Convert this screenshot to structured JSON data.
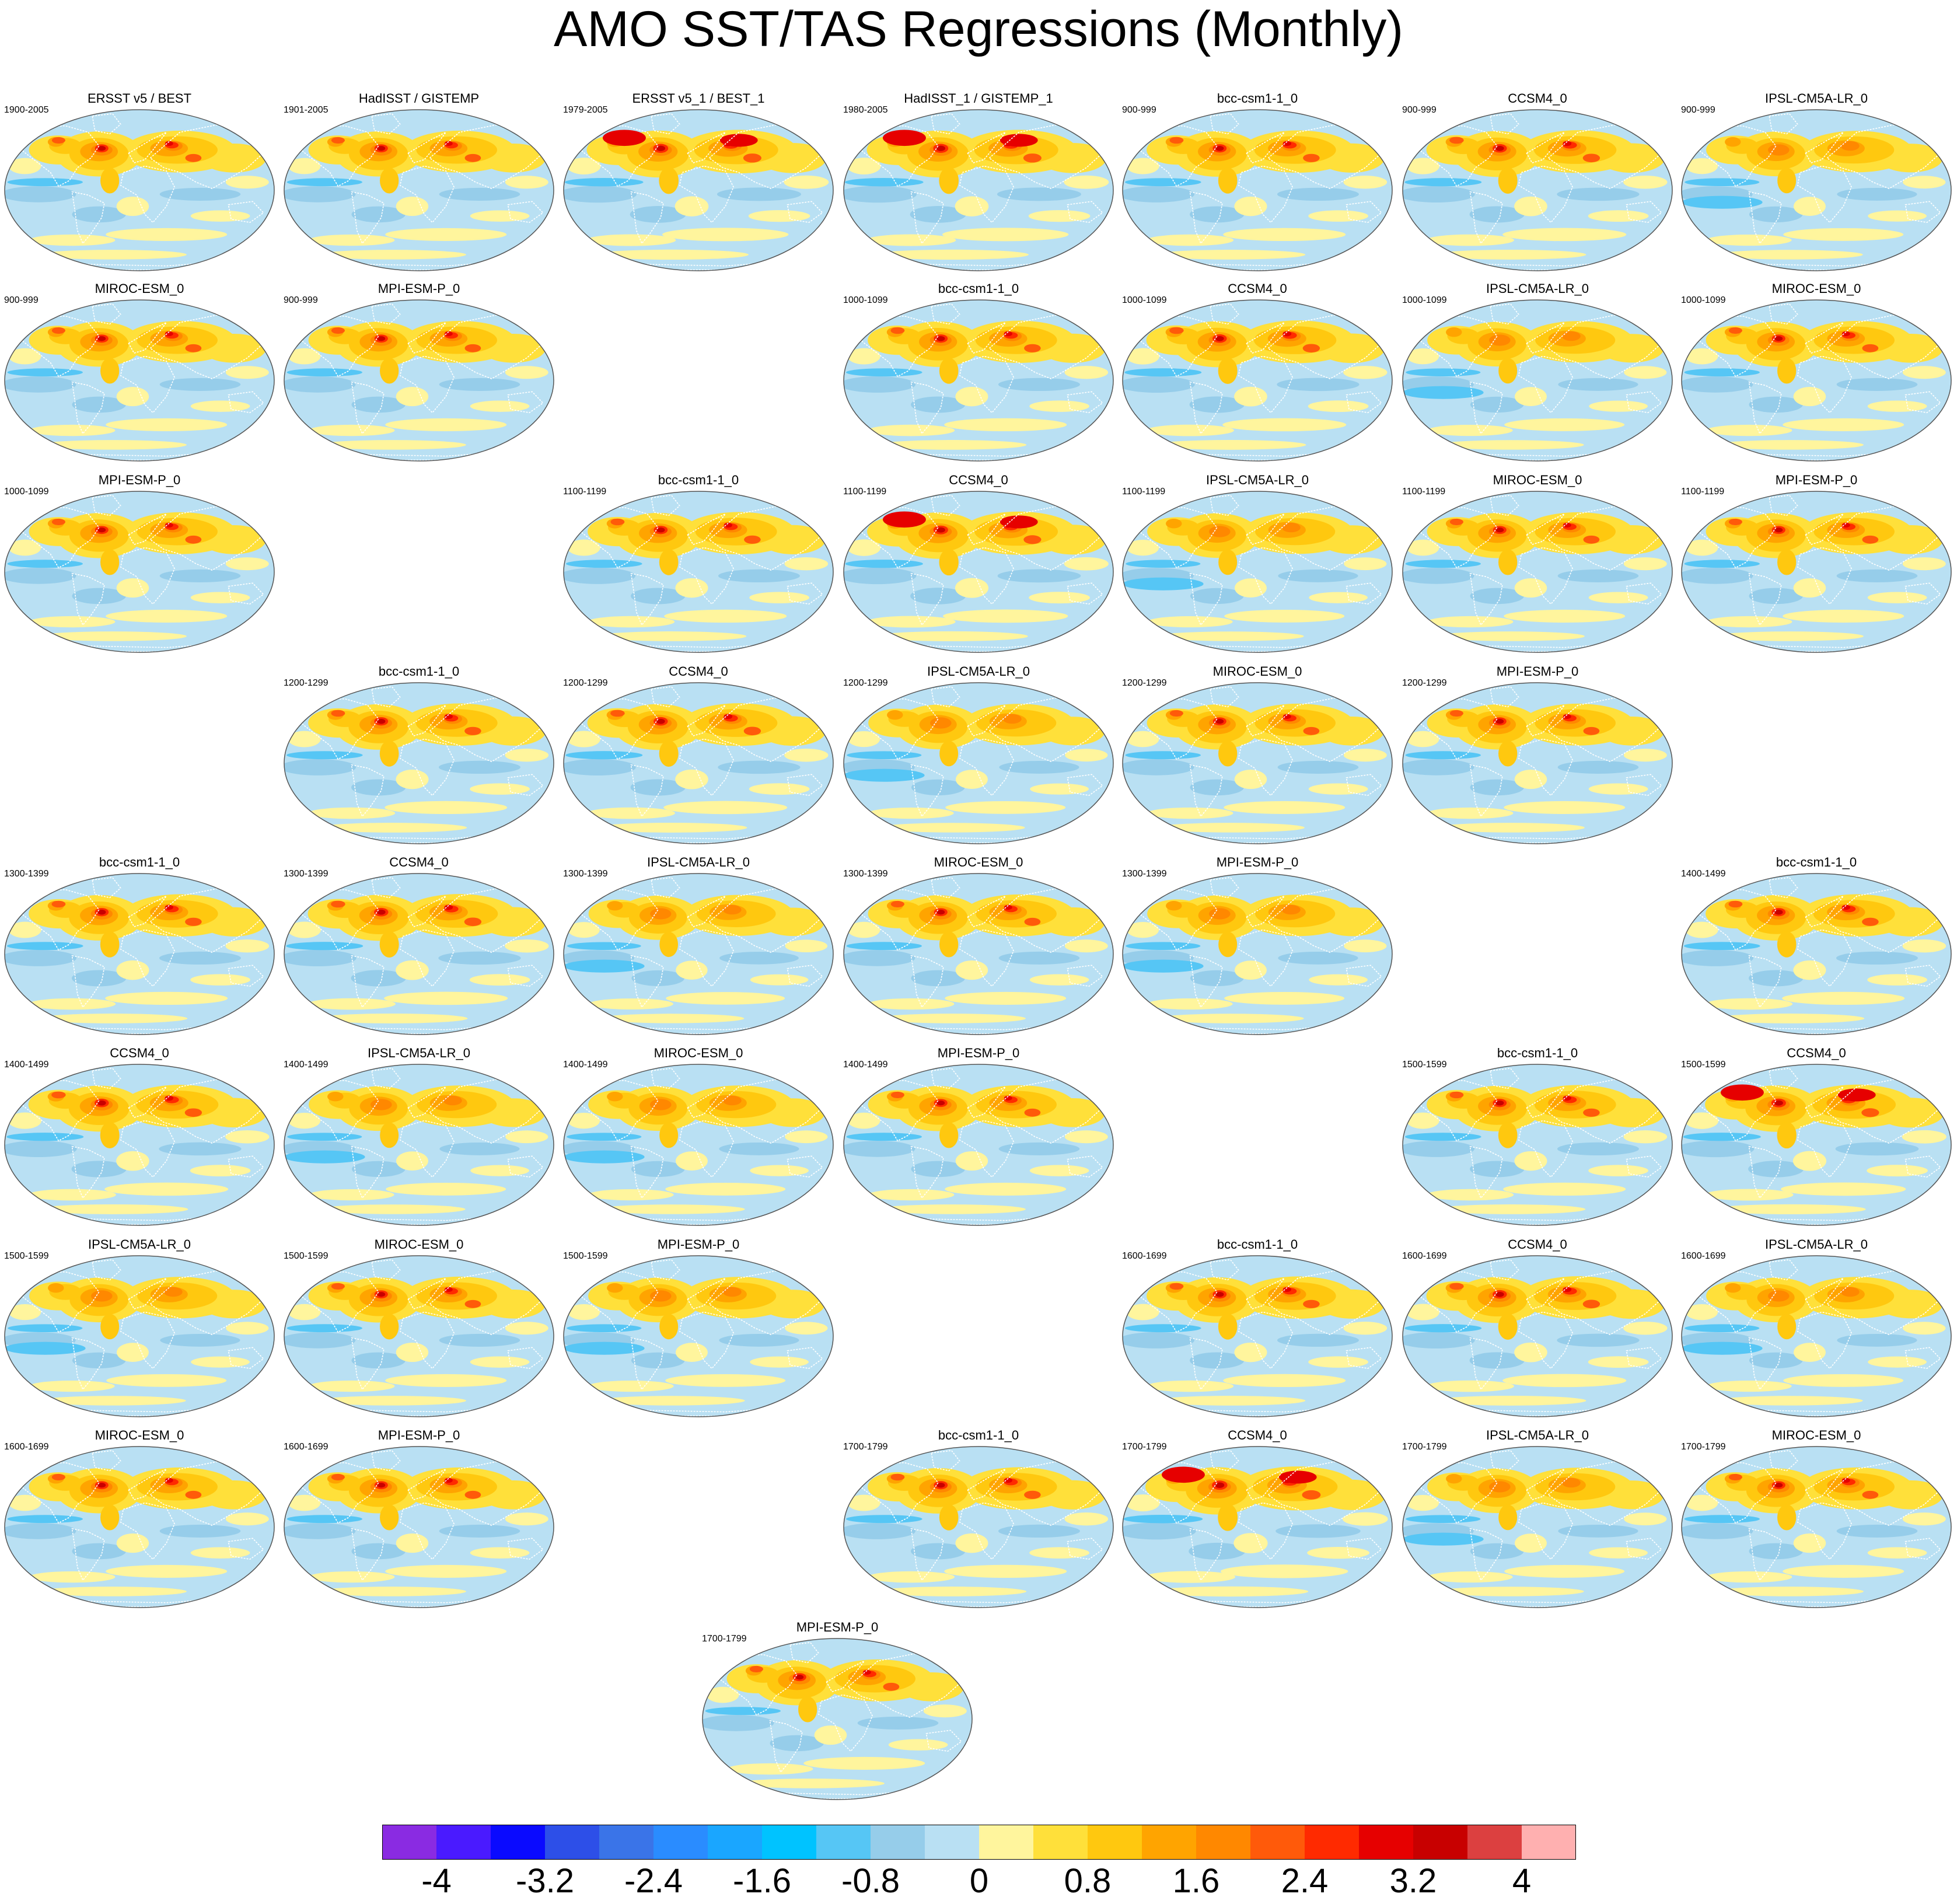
{
  "title": "AMO SST/TAS Regressions (Monthly)",
  "colors": {
    "land_outline": "#ffffff",
    "ocean_background": "#b9e0f3",
    "map_border": "#555555"
  },
  "panels": [
    {
      "id": "p0",
      "title": "ERSST v5 / BEST",
      "period": "1900-2005",
      "warmth": 1.0
    },
    {
      "id": "p1",
      "title": "HadISST / GISTEMP",
      "period": "1901-2005",
      "warmth": 1.0
    },
    {
      "id": "p2",
      "title": "ERSST v5_1 / BEST_1",
      "period": "1979-2005",
      "warmth": 1.4
    },
    {
      "id": "p3",
      "title": "HadISST_1 / GISTEMP_1",
      "period": "1980-2005",
      "warmth": 1.4
    },
    {
      "id": "p4",
      "title": "bcc-csm1-1_0",
      "period": "900-999",
      "warmth": 1.1
    },
    {
      "id": "p5",
      "title": "CCSM4_0",
      "period": "900-999",
      "warmth": 1.2
    },
    {
      "id": "p6",
      "title": "IPSL-CM5A-LR_0",
      "period": "900-999",
      "warmth": 0.9
    },
    {
      "id": "p7",
      "title": "MIROC-ESM_0",
      "period": "900-999",
      "warmth": 1.0
    },
    {
      "id": "p8",
      "title": "MPI-ESM-P_0",
      "period": "900-999",
      "warmth": 1.0
    },
    {
      "id": "p9",
      "title": "bcc-csm1-1_0",
      "period": "1000-1099",
      "warmth": 1.1
    },
    {
      "id": "p10",
      "title": "CCSM4_0",
      "period": "1000-1099",
      "warmth": 1.2
    },
    {
      "id": "p11",
      "title": "IPSL-CM5A-LR_0",
      "period": "1000-1099",
      "warmth": 0.9
    },
    {
      "id": "p12",
      "title": "MIROC-ESM_0",
      "period": "1000-1099",
      "warmth": 1.0
    },
    {
      "id": "p13",
      "title": "MPI-ESM-P_0",
      "period": "1000-1099",
      "warmth": 1.0
    },
    {
      "id": "p14",
      "title": "bcc-csm1-1_0",
      "period": "1100-1199",
      "warmth": 1.1
    },
    {
      "id": "p15",
      "title": "CCSM4_0",
      "period": "1100-1199",
      "warmth": 1.3
    },
    {
      "id": "p16",
      "title": "IPSL-CM5A-LR_0",
      "period": "1100-1199",
      "warmth": 0.9
    },
    {
      "id": "p17",
      "title": "MIROC-ESM_0",
      "period": "1100-1199",
      "warmth": 1.0
    },
    {
      "id": "p18",
      "title": "MPI-ESM-P_0",
      "period": "1100-1199",
      "warmth": 1.0
    },
    {
      "id": "p19",
      "title": "bcc-csm1-1_0",
      "period": "1200-1299",
      "warmth": 1.1
    },
    {
      "id": "p20",
      "title": "CCSM4_0",
      "period": "1200-1299",
      "warmth": 1.2
    },
    {
      "id": "p21",
      "title": "IPSL-CM5A-LR_0",
      "period": "1200-1299",
      "warmth": 0.9
    },
    {
      "id": "p22",
      "title": "MIROC-ESM_0",
      "period": "1200-1299",
      "warmth": 1.0
    },
    {
      "id": "p23",
      "title": "MPI-ESM-P_0",
      "period": "1200-1299",
      "warmth": 1.0
    },
    {
      "id": "p24",
      "title": "bcc-csm1-1_0",
      "period": "1300-1399",
      "warmth": 1.1
    },
    {
      "id": "p25",
      "title": "CCSM4_0",
      "period": "1300-1399",
      "warmth": 1.2
    },
    {
      "id": "p26",
      "title": "IPSL-CM5A-LR_0",
      "period": "1300-1399",
      "warmth": 0.8
    },
    {
      "id": "p27",
      "title": "MIROC-ESM_0",
      "period": "1300-1399",
      "warmth": 1.0
    },
    {
      "id": "p28",
      "title": "MPI-ESM-P_0",
      "period": "1300-1399",
      "warmth": 0.9
    },
    {
      "id": "p29",
      "title": "bcc-csm1-1_0",
      "period": "1400-1499",
      "warmth": 1.1
    },
    {
      "id": "p30",
      "title": "CCSM4_0",
      "period": "1400-1499",
      "warmth": 1.2
    },
    {
      "id": "p31",
      "title": "IPSL-CM5A-LR_0",
      "period": "1400-1499",
      "warmth": 0.9
    },
    {
      "id": "p32",
      "title": "MIROC-ESM_0",
      "period": "1400-1499",
      "warmth": 0.9
    },
    {
      "id": "p33",
      "title": "MPI-ESM-P_0",
      "period": "1400-1499",
      "warmth": 1.0
    },
    {
      "id": "p34",
      "title": "bcc-csm1-1_0",
      "period": "1500-1599",
      "warmth": 1.1
    },
    {
      "id": "p35",
      "title": "CCSM4_0",
      "period": "1500-1599",
      "warmth": 1.3
    },
    {
      "id": "p36",
      "title": "IPSL-CM5A-LR_0",
      "period": "1500-1599",
      "warmth": 0.9
    },
    {
      "id": "p37",
      "title": "MIROC-ESM_0",
      "period": "1500-1599",
      "warmth": 1.0
    },
    {
      "id": "p38",
      "title": "MPI-ESM-P_0",
      "period": "1500-1599",
      "warmth": 0.9
    },
    {
      "id": "p39",
      "title": "bcc-csm1-1_0",
      "period": "1600-1699",
      "warmth": 1.1
    },
    {
      "id": "p40",
      "title": "CCSM4_0",
      "period": "1600-1699",
      "warmth": 1.2
    },
    {
      "id": "p41",
      "title": "IPSL-CM5A-LR_0",
      "period": "1600-1699",
      "warmth": 0.9
    },
    {
      "id": "p42",
      "title": "MIROC-ESM_0",
      "period": "1600-1699",
      "warmth": 1.0
    },
    {
      "id": "p43",
      "title": "MPI-ESM-P_0",
      "period": "1600-1699",
      "warmth": 1.0
    },
    {
      "id": "p44",
      "title": "bcc-csm1-1_0",
      "period": "1700-1799",
      "warmth": 1.1
    },
    {
      "id": "p45",
      "title": "CCSM4_0",
      "period": "1700-1799",
      "warmth": 1.5
    },
    {
      "id": "p46",
      "title": "IPSL-CM5A-LR_0",
      "period": "1700-1799",
      "warmth": 0.9
    },
    {
      "id": "p47",
      "title": "MIROC-ESM_0",
      "period": "1700-1799",
      "warmth": 1.0
    },
    {
      "id": "p48",
      "title": "MPI-ESM-P_0",
      "period": "1700-1799",
      "warmth": 1.0
    }
  ],
  "colorbar": {
    "colors": [
      "#8a2be2",
      "#4a1aff",
      "#0a0aff",
      "#2d4fe8",
      "#3a74e8",
      "#2a8cff",
      "#1aa6ff",
      "#00c3ff",
      "#56c6f5",
      "#96cdea",
      "#b9e0f3",
      "#fff59d",
      "#ffe03a",
      "#ffc80f",
      "#ffa400",
      "#ff8800",
      "#ff5a0a",
      "#ff2a00",
      "#e60000",
      "#c80000",
      "#dc4040",
      "#ffb0b0"
    ],
    "labels": [
      "-4",
      "-3.2",
      "-2.4",
      "-1.6",
      "-0.8",
      "0",
      "0.8",
      "1.6",
      "2.4",
      "3.2",
      "4"
    ]
  }
}
